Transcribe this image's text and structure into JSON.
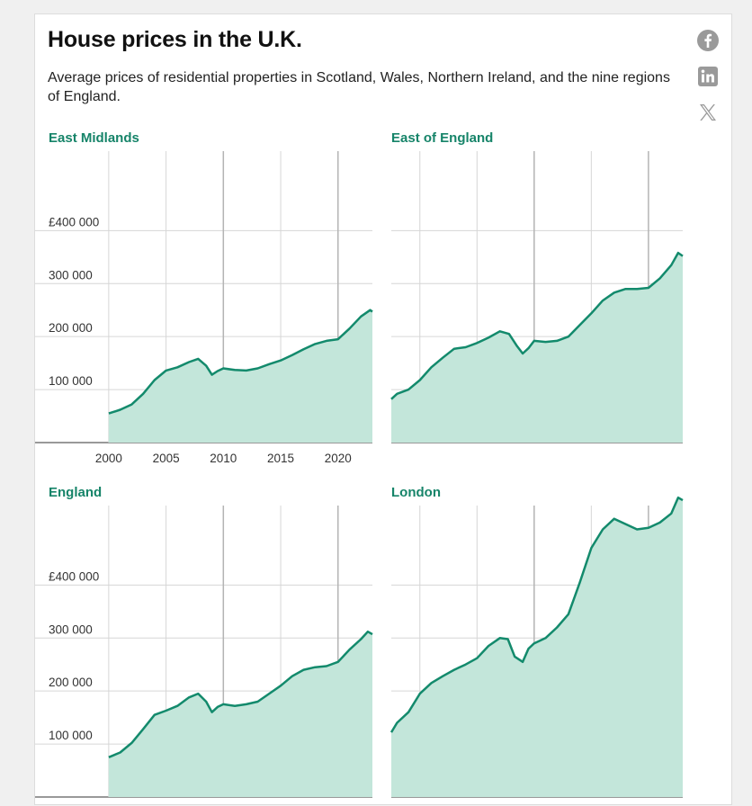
{
  "header": {
    "title": "House prices in the U.K.",
    "subtitle": "Average prices of residential properties in Scotland, Wales, Northern Ireland, and the nine regions of England."
  },
  "share": {
    "icons": [
      "facebook-icon",
      "linkedin-icon",
      "x-icon"
    ],
    "color": "#9a9a9a"
  },
  "colors": {
    "line": "#138a6c",
    "fill": "#c3e6da",
    "panel_title": "#168469",
    "grid": "#d6d6d6"
  },
  "chart_data": [
    {
      "type": "area",
      "title": "East Midlands",
      "x": [
        2000,
        2001,
        2002,
        2003,
        2004,
        2005,
        2006,
        2007,
        2007.8,
        2008.5,
        2009,
        2009.5,
        2010,
        2011,
        2012,
        2013,
        2014,
        2015,
        2016,
        2017,
        2018,
        2019,
        2020,
        2021,
        2022,
        2022.8,
        2023
      ],
      "values": [
        55000,
        62000,
        72000,
        92000,
        118000,
        136000,
        142000,
        152000,
        158000,
        145000,
        128000,
        135000,
        140000,
        137000,
        136000,
        140000,
        148000,
        155000,
        165000,
        176000,
        186000,
        192000,
        195000,
        215000,
        238000,
        250000,
        247000
      ],
      "ylim": [
        0,
        550000
      ],
      "xlim": [
        1997.5,
        2023
      ],
      "yticks": [
        100000,
        200000,
        300000,
        400000
      ],
      "ytick_labels": [
        "100 000",
        "200 000",
        "300 000",
        "£400 000"
      ],
      "xticks": [
        2000,
        2005,
        2010,
        2015,
        2020
      ],
      "xtick_labels": [
        "2000",
        "2005",
        "2010",
        "2015",
        "2020"
      ]
    },
    {
      "type": "area",
      "title": "East of England",
      "x": [
        1997.5,
        1998,
        1999,
        2000,
        2001,
        2002,
        2003,
        2004,
        2005,
        2006,
        2007,
        2007.8,
        2008.5,
        2009,
        2009.5,
        2010,
        2011,
        2012,
        2013,
        2014,
        2015,
        2016,
        2017,
        2018,
        2019,
        2020,
        2021,
        2022,
        2022.6,
        2023
      ],
      "values": [
        82000,
        92000,
        100000,
        118000,
        142000,
        160000,
        177000,
        180000,
        188000,
        198000,
        210000,
        205000,
        182000,
        168000,
        178000,
        192000,
        190000,
        192000,
        200000,
        222000,
        244000,
        268000,
        283000,
        290000,
        290000,
        292000,
        310000,
        335000,
        358000,
        352000
      ],
      "ylim": [
        0,
        550000
      ],
      "xlim": [
        1997.5,
        2023
      ]
    },
    {
      "type": "area",
      "title": "England",
      "x": [
        2000,
        2001,
        2002,
        2003,
        2004,
        2005,
        2006,
        2007,
        2007.8,
        2008.5,
        2009,
        2009.5,
        2010,
        2011,
        2012,
        2013,
        2014,
        2015,
        2016,
        2017,
        2018,
        2019,
        2020,
        2021,
        2022,
        2022.6,
        2023
      ],
      "values": [
        75000,
        84000,
        102000,
        128000,
        155000,
        163000,
        172000,
        188000,
        195000,
        180000,
        160000,
        170000,
        175000,
        172000,
        175000,
        180000,
        195000,
        210000,
        228000,
        240000,
        245000,
        247000,
        255000,
        278000,
        298000,
        312000,
        307000
      ],
      "ylim": [
        0,
        550000
      ],
      "xlim": [
        1997.5,
        2023
      ],
      "yticks": [
        100000,
        200000,
        300000,
        400000
      ],
      "ytick_labels": [
        "100 000",
        "200 000",
        "300 000",
        "£400 000"
      ]
    },
    {
      "type": "area",
      "title": "London",
      "x": [
        1997.5,
        1998,
        1999,
        2000,
        2001,
        2002,
        2003,
        2004,
        2005,
        2006,
        2007,
        2007.7,
        2008.3,
        2009,
        2009.5,
        2010,
        2011,
        2012,
        2013,
        2014,
        2015,
        2016,
        2017,
        2018,
        2019,
        2020,
        2021,
        2022,
        2022.6,
        2023
      ],
      "values": [
        122000,
        140000,
        160000,
        195000,
        215000,
        228000,
        240000,
        250000,
        262000,
        285000,
        300000,
        298000,
        265000,
        255000,
        280000,
        290000,
        300000,
        320000,
        345000,
        405000,
        470000,
        505000,
        525000,
        515000,
        505000,
        508000,
        518000,
        535000,
        565000,
        560000
      ],
      "ylim": [
        0,
        550000
      ],
      "xlim": [
        1997.5,
        2023
      ]
    }
  ]
}
